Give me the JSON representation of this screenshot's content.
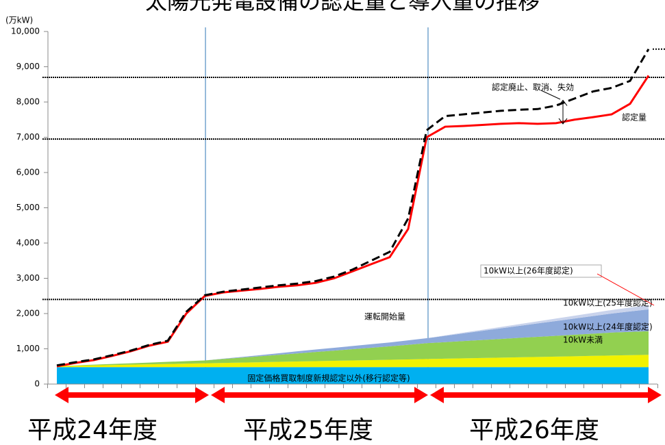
{
  "chart_data": {
    "type": "line",
    "title": "太陽光発電設備の認定量と導入量の推移",
    "y_unit": "(万kW)",
    "categories": [
      null,
      null,
      null,
      null,
      null,
      null,
      null,
      null,
      null,
      null,
      null,
      null,
      null,
      null,
      null,
      null,
      null,
      null,
      null,
      null,
      null,
      null,
      null,
      null,
      null,
      null,
      null,
      null,
      null,
      null,
      null,
      null,
      null
    ],
    "ylim": [
      0,
      10000
    ],
    "yticks": [
      0,
      {
        "value": 1000,
        "label": "1,000"
      },
      {
        "value": 2000,
        "label": "2,000"
      },
      {
        "value": 3000,
        "label": "3,000"
      },
      {
        "value": 4000,
        "label": "4,000"
      },
      {
        "value": 5000,
        "label": "5,000"
      },
      {
        "value": 6000,
        "label": "6,000"
      },
      {
        "value": 7000,
        "label": "7,000"
      },
      {
        "value": 8000,
        "label": "8,000"
      },
      {
        "value": 9000,
        "label": "9,000"
      },
      {
        "value": 10000,
        "label": "10,000"
      }
    ],
    "reference_lines": [
      8700,
      6950,
      2400
    ],
    "lines": [
      {
        "name": "認定量",
        "color": "#ff0000",
        "dashed": false,
        "values": [
          505,
          600,
          680,
          800,
          930,
          1090,
          1200,
          2000,
          2500,
          2600,
          2650,
          2700,
          2760,
          2800,
          2870,
          3000,
          3200,
          3400,
          3600,
          4400,
          7000,
          7300,
          7320,
          7350,
          7380,
          7400,
          7380,
          7400,
          7500,
          7570,
          7650,
          7950,
          8750
        ]
      },
      {
        "name": "認定廃止、取消、失効",
        "color": "#000000",
        "dashed": true,
        "values": [
          530,
          620,
          700,
          820,
          950,
          1110,
          1230,
          2050,
          2520,
          2620,
          2680,
          2740,
          2800,
          2850,
          2920,
          3050,
          3250,
          3500,
          3750,
          4700,
          7200,
          7600,
          7650,
          7700,
          7750,
          7780,
          7800,
          7900,
          8100,
          8300,
          8400,
          8600,
          9500
        ]
      }
    ],
    "stack_label": "運転開始量",
    "series": [
      {
        "name": "固定価格買取制度新規認定以外(移行認定等)",
        "color": "#00b0f0",
        "values": [
          480,
          480,
          480,
          480,
          480,
          480,
          480,
          480,
          480,
          480,
          480,
          480,
          480,
          480,
          480,
          480,
          480,
          480,
          480,
          480,
          480,
          480,
          480,
          480,
          480,
          480,
          480,
          480,
          480,
          480,
          480,
          480,
          480
        ]
      },
      {
        "name": "10kW未満",
        "color": "#f2f200",
        "values": [
          30,
          40,
          50,
          60,
          70,
          80,
          90,
          100,
          110,
          120,
          130,
          140,
          150,
          160,
          170,
          180,
          190,
          200,
          210,
          220,
          230,
          240,
          250,
          260,
          270,
          280,
          290,
          300,
          310,
          320,
          330,
          340,
          350
        ]
      },
      {
        "name": "10kW以上(24年度認定)",
        "color": "#92d050",
        "values": [
          0,
          10,
          20,
          30,
          40,
          50,
          60,
          70,
          80,
          110,
          140,
          170,
          200,
          230,
          260,
          290,
          320,
          350,
          380,
          415,
          450,
          470,
          490,
          510,
          530,
          550,
          570,
          590,
          610,
          630,
          650,
          660,
          670
        ]
      },
      {
        "name": "10kW以上(25年度認定)",
        "color": "#8eaadb",
        "values": [
          0,
          0,
          0,
          0,
          0,
          0,
          0,
          0,
          0,
          10,
          20,
          30,
          45,
          60,
          70,
          80,
          90,
          100,
          110,
          125,
          140,
          180,
          220,
          260,
          300,
          340,
          380,
          420,
          460,
          500,
          540,
          580,
          620
        ]
      },
      {
        "name": "10kW以上(26年度認定)",
        "color": "#c9d3ec",
        "values": [
          0,
          0,
          0,
          0,
          0,
          0,
          0,
          0,
          0,
          0,
          0,
          0,
          0,
          0,
          0,
          0,
          0,
          0,
          0,
          0,
          0,
          10,
          20,
          30,
          40,
          50,
          60,
          70,
          80,
          90,
          100,
          110,
          120
        ]
      }
    ],
    "periods": [
      "平成24年度",
      "平成25年度",
      "平成26年度"
    ]
  }
}
